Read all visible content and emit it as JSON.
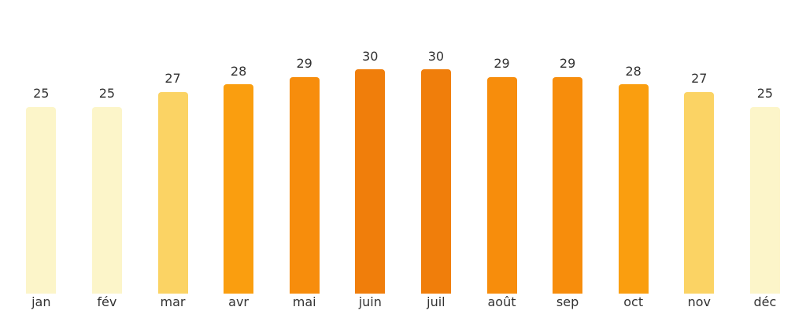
{
  "chart_data": {
    "type": "bar",
    "title": "",
    "xlabel": "",
    "ylabel": "",
    "categories": [
      "jan",
      "fév",
      "mar",
      "avr",
      "mai",
      "juin",
      "juil",
      "août",
      "sep",
      "oct",
      "nov",
      "déc"
    ],
    "values": [
      25,
      25,
      27,
      28,
      29,
      30,
      30,
      29,
      29,
      28,
      27,
      25
    ],
    "bar_colors": [
      "#FCF5C9",
      "#FCF5C9",
      "#FBD364",
      "#FA9E0F",
      "#F78D0C",
      "#F07E0B",
      "#F07E0B",
      "#F78D0C",
      "#F78D0C",
      "#FA9E0F",
      "#FBD364",
      "#FCF5C9"
    ],
    "color_scale": {
      "25": "#FCF5C9",
      "27": "#FBD364",
      "28": "#FA9E0F",
      "29": "#F78D0C",
      "30": "#F07E0B"
    },
    "value_labels_shown": true,
    "ylim": [
      0,
      31.5
    ],
    "grid": false,
    "legend": null,
    "axes_shown": false,
    "background": "#FFFFFF",
    "label_color": "#333333"
  }
}
